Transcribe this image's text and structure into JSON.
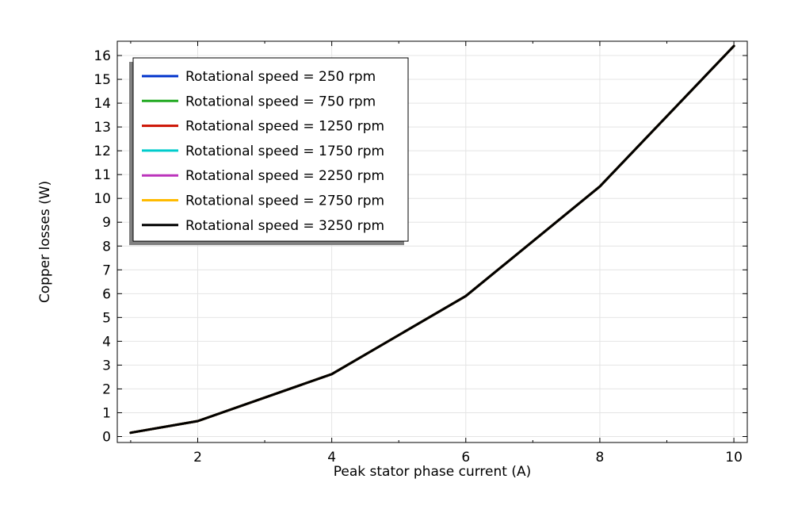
{
  "chart_data": {
    "type": "line",
    "title": "",
    "xlabel": "Peak stator phase current (A)",
    "ylabel": "Copper losses (W)",
    "xlim": [
      0.8,
      10.2
    ],
    "ylim": [
      -0.25,
      16.6
    ],
    "xticks": [
      2,
      4,
      6,
      8,
      10
    ],
    "yticks": [
      0,
      1,
      2,
      3,
      4,
      5,
      6,
      7,
      8,
      9,
      10,
      11,
      12,
      13,
      14,
      15,
      16
    ],
    "grid": true,
    "legend_position": "top-left",
    "x": [
      1,
      2,
      4,
      6,
      8,
      10
    ],
    "series": [
      {
        "name": "Rotational speed = 250 rpm",
        "color": "#0033cc",
        "values": [
          0.16,
          0.65,
          2.62,
          5.9,
          10.5,
          16.4
        ]
      },
      {
        "name": "Rotational speed = 750 rpm",
        "color": "#22aa22",
        "values": [
          0.16,
          0.65,
          2.62,
          5.9,
          10.5,
          16.4
        ]
      },
      {
        "name": "Rotational speed = 1250 rpm",
        "color": "#cc1100",
        "values": [
          0.16,
          0.65,
          2.62,
          5.9,
          10.5,
          16.4
        ]
      },
      {
        "name": "Rotational speed = 1750 rpm",
        "color": "#00cccc",
        "values": [
          0.16,
          0.65,
          2.62,
          5.9,
          10.5,
          16.4
        ]
      },
      {
        "name": "Rotational speed = 2250 rpm",
        "color": "#bb33bb",
        "values": [
          0.16,
          0.65,
          2.62,
          5.9,
          10.5,
          16.4
        ]
      },
      {
        "name": "Rotational speed = 2750 rpm",
        "color": "#ffbb00",
        "values": [
          0.16,
          0.65,
          2.62,
          5.9,
          10.5,
          16.4
        ]
      },
      {
        "name": "Rotational speed = 3250 rpm",
        "color": "#000000",
        "values": [
          0.16,
          0.65,
          2.62,
          5.9,
          10.5,
          16.4
        ]
      }
    ]
  }
}
